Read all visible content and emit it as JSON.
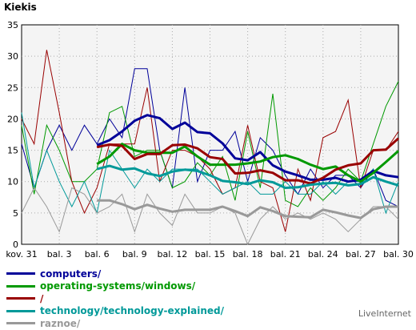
{
  "chart_data": {
    "type": "line",
    "title": "Kiekis",
    "ylim": [
      0,
      35
    ],
    "yticks": [
      0,
      5,
      10,
      15,
      20,
      25,
      30,
      35
    ],
    "grid": true,
    "x_tick_labels": [
      "kov. 31",
      "bal. 3",
      "bal. 6",
      "bal. 9",
      "bal. 12",
      "bal. 15",
      "bal. 18",
      "bal. 21",
      "bal. 24",
      "bal. 27",
      "bal. 30"
    ],
    "x_days": [
      "kov. 31",
      "bal. 1",
      "bal. 2",
      "bal. 3",
      "bal. 4",
      "bal. 5",
      "bal. 6",
      "bal. 7",
      "bal. 8",
      "bal. 9",
      "bal. 10",
      "bal. 11",
      "bal. 12",
      "bal. 13",
      "bal. 14",
      "bal. 15",
      "bal. 16",
      "bal. 17",
      "bal. 18",
      "bal. 19",
      "bal. 20",
      "bal. 21",
      "bal. 22",
      "bal. 23",
      "bal. 24",
      "bal. 25",
      "bal. 26",
      "bal. 27",
      "bal. 28",
      "bal. 29",
      "bal. 30"
    ],
    "legend_position": "bottom",
    "series": [
      {
        "name": "computers/",
        "color": "#000099",
        "daily": [
          16,
          9,
          15,
          19,
          15,
          19,
          16,
          20,
          17,
          28,
          28,
          15,
          9,
          25,
          10,
          15,
          15,
          18,
          10,
          17,
          15,
          11,
          8,
          12,
          9,
          11,
          11,
          9,
          12,
          7,
          6
        ],
        "average": [
          null,
          null,
          null,
          null,
          null,
          null,
          15.8,
          16.6,
          18.0,
          19.7,
          20.6,
          20.1,
          18.4,
          19.4,
          17.9,
          17.7,
          16.1,
          13.7,
          13.4,
          14.7,
          12.6,
          11.6,
          11.0,
          10.3,
          10.3,
          10.6,
          10.0,
          10.3,
          11.7,
          11.0,
          10.7
        ]
      },
      {
        "name": "operating-systems/windows/",
        "color": "#009900",
        "daily": [
          19,
          8,
          19,
          15,
          10,
          10,
          12,
          21,
          22,
          14,
          15,
          15,
          9,
          10,
          13,
          11,
          14,
          7,
          18,
          9,
          24,
          7,
          6,
          9,
          7,
          9,
          12,
          10,
          16,
          22,
          26
        ],
        "average": [
          null,
          null,
          null,
          null,
          null,
          null,
          12.8,
          14.0,
          16.0,
          15.0,
          14.6,
          14.6,
          14.6,
          15.6,
          14.0,
          12.7,
          12.7,
          12.7,
          12.9,
          13.2,
          13.9,
          14.2,
          13.6,
          12.7,
          12.0,
          12.4,
          11.0,
          10.0,
          11.4,
          13.1,
          14.9
        ]
      },
      {
        "name": "/",
        "color": "#990000",
        "daily": [
          20,
          16,
          31,
          21,
          10,
          5,
          9,
          16,
          16,
          16,
          25,
          10,
          15,
          15,
          14,
          12,
          8,
          9,
          19,
          10,
          9,
          2,
          12,
          7,
          17,
          18,
          23,
          9,
          15,
          15,
          18
        ],
        "average": [
          null,
          null,
          null,
          null,
          null,
          null,
          15.5,
          15.9,
          15.7,
          13.6,
          14.4,
          14.4,
          15.8,
          15.9,
          15.3,
          13.9,
          13.6,
          11.3,
          11.4,
          11.8,
          11.4,
          10.2,
          10.2,
          9.7,
          10.6,
          11.9,
          12.6,
          12.9,
          15.0,
          15.1,
          16.9
        ]
      },
      {
        "name": "technology/technology-explained/",
        "color": "#009999",
        "daily": [
          21,
          9,
          15,
          10,
          6,
          10,
          5,
          15,
          12,
          9,
          12,
          10,
          12,
          12,
          12,
          10,
          8,
          9,
          10,
          8,
          8,
          10,
          8,
          8,
          10,
          8,
          10,
          10,
          12,
          5,
          10
        ],
        "average": [
          null,
          null,
          null,
          null,
          null,
          null,
          12.0,
          12.5,
          11.9,
          12.1,
          11.3,
          10.9,
          11.6,
          11.9,
          11.7,
          11.0,
          10.1,
          9.9,
          9.6,
          10.2,
          9.9,
          9.0,
          9.1,
          9.5,
          9.7,
          9.8,
          9.4,
          9.6,
          10.7,
          10.0,
          9.4
        ]
      },
      {
        "name": "raznoe/",
        "color": "#999999",
        "daily": [
          5,
          9,
          6,
          2,
          9,
          8,
          5,
          6,
          8,
          2,
          8,
          5,
          3,
          8,
          5,
          5,
          6,
          5,
          0,
          4,
          6,
          4,
          5,
          4,
          5,
          4,
          2,
          4,
          6,
          6,
          4
        ],
        "average": [
          null,
          null,
          null,
          null,
          null,
          null,
          7.0,
          7.0,
          6.4,
          5.6,
          6.3,
          5.7,
          5.2,
          5.5,
          5.5,
          5.5,
          6.0,
          5.3,
          4.5,
          5.9,
          5.3,
          4.5,
          4.4,
          4.3,
          5.5,
          5.1,
          4.6,
          4.2,
          5.6,
          6.0,
          6.0
        ]
      }
    ]
  },
  "brand": "LiveInternet"
}
